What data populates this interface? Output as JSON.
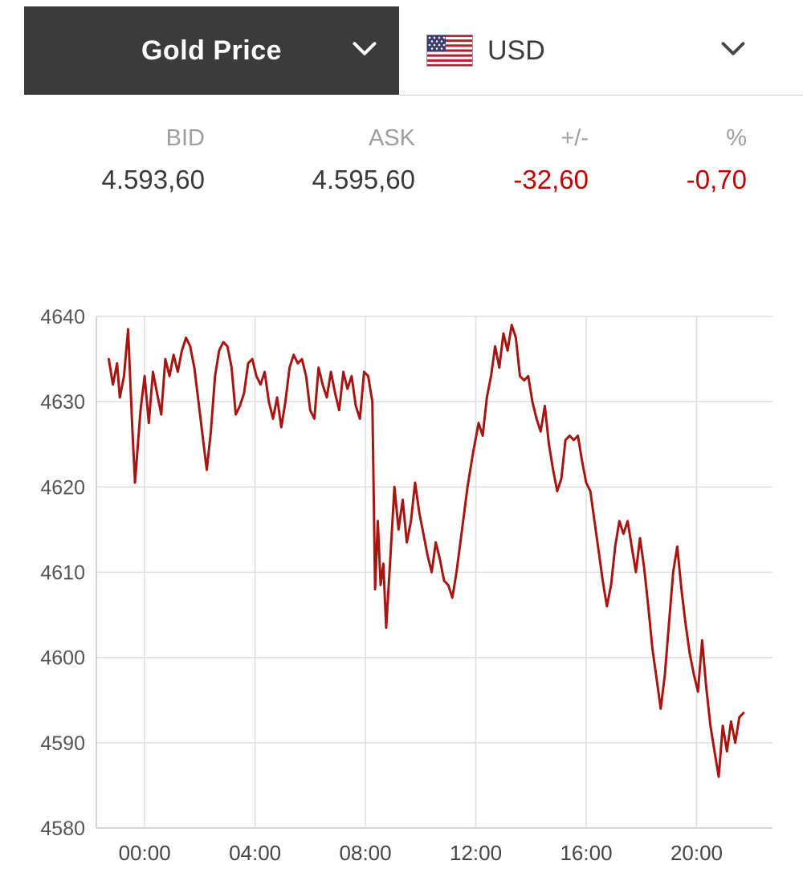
{
  "header": {
    "title": "Gold Price",
    "currency": "USD"
  },
  "quote": {
    "columns": [
      "BID",
      "ASK",
      "+/-",
      "%"
    ],
    "bid": "4.593,60",
    "ask": "4.595,60",
    "change": "-32,60",
    "change_pct": "-0,70"
  },
  "colors": {
    "negative": "#c00000",
    "line": "#aa1410",
    "grid": "#dedede",
    "axis": "#c7c7c7",
    "ytick_text": "#555555",
    "xtick_text": "#444444",
    "header_bg": "#3b3b3b"
  },
  "chart_data": {
    "type": "line",
    "title": "",
    "xlabel": "",
    "ylabel": "",
    "xlim": [
      -1.75,
      22.75
    ],
    "ylim": [
      4580,
      4640
    ],
    "yticks": [
      4580,
      4590,
      4600,
      4610,
      4620,
      4630,
      4640
    ],
    "xticks": [
      {
        "value": 0,
        "label": "00:00"
      },
      {
        "value": 4,
        "label": "04:00"
      },
      {
        "value": 8,
        "label": "08:00"
      },
      {
        "value": 12,
        "label": "12:00"
      },
      {
        "value": 16,
        "label": "16:00"
      },
      {
        "value": 20,
        "label": "20:00"
      }
    ],
    "grid": true,
    "legend": false,
    "series": [
      {
        "name": "Gold Price USD",
        "points": [
          [
            -1.3,
            4635.0
          ],
          [
            -1.15,
            4632.0
          ],
          [
            -1.0,
            4634.5
          ],
          [
            -0.9,
            4630.5
          ],
          [
            -0.75,
            4633.0
          ],
          [
            -0.6,
            4638.5
          ],
          [
            -0.45,
            4627.0
          ],
          [
            -0.35,
            4620.5
          ],
          [
            -0.15,
            4629.0
          ],
          [
            0.0,
            4633.0
          ],
          [
            0.15,
            4627.5
          ],
          [
            0.3,
            4633.5
          ],
          [
            0.45,
            4631.0
          ],
          [
            0.6,
            4628.5
          ],
          [
            0.75,
            4635.0
          ],
          [
            0.9,
            4633.0
          ],
          [
            1.05,
            4635.5
          ],
          [
            1.2,
            4633.5
          ],
          [
            1.35,
            4636.0
          ],
          [
            1.5,
            4637.5
          ],
          [
            1.65,
            4636.5
          ],
          [
            1.8,
            4634.0
          ],
          [
            1.95,
            4630.0
          ],
          [
            2.1,
            4626.0
          ],
          [
            2.25,
            4622.0
          ],
          [
            2.4,
            4626.5
          ],
          [
            2.55,
            4633.0
          ],
          [
            2.7,
            4636.0
          ],
          [
            2.85,
            4637.0
          ],
          [
            3.0,
            4636.5
          ],
          [
            3.15,
            4634.0
          ],
          [
            3.3,
            4628.5
          ],
          [
            3.45,
            4629.5
          ],
          [
            3.6,
            4631.0
          ],
          [
            3.75,
            4634.5
          ],
          [
            3.9,
            4635.0
          ],
          [
            4.05,
            4633.0
          ],
          [
            4.2,
            4632.0
          ],
          [
            4.35,
            4633.5
          ],
          [
            4.5,
            4630.0
          ],
          [
            4.65,
            4628.0
          ],
          [
            4.8,
            4630.5
          ],
          [
            4.95,
            4627.0
          ],
          [
            5.1,
            4630.0
          ],
          [
            5.25,
            4634.0
          ],
          [
            5.4,
            4635.5
          ],
          [
            5.55,
            4634.5
          ],
          [
            5.7,
            4635.0
          ],
          [
            5.85,
            4633.0
          ],
          [
            6.0,
            4629.0
          ],
          [
            6.15,
            4628.0
          ],
          [
            6.3,
            4634.0
          ],
          [
            6.45,
            4632.0
          ],
          [
            6.6,
            4630.5
          ],
          [
            6.75,
            4633.5
          ],
          [
            6.9,
            4631.0
          ],
          [
            7.05,
            4629.0
          ],
          [
            7.2,
            4633.5
          ],
          [
            7.35,
            4631.5
          ],
          [
            7.5,
            4633.0
          ],
          [
            7.65,
            4629.5
          ],
          [
            7.8,
            4628.0
          ],
          [
            7.95,
            4633.5
          ],
          [
            8.1,
            4633.0
          ],
          [
            8.25,
            4630.0
          ],
          [
            8.35,
            4608.0
          ],
          [
            8.45,
            4616.0
          ],
          [
            8.55,
            4608.5
          ],
          [
            8.65,
            4611.0
          ],
          [
            8.75,
            4603.5
          ],
          [
            8.9,
            4611.5
          ],
          [
            9.05,
            4620.0
          ],
          [
            9.2,
            4615.0
          ],
          [
            9.35,
            4618.5
          ],
          [
            9.5,
            4613.5
          ],
          [
            9.65,
            4616.0
          ],
          [
            9.8,
            4620.5
          ],
          [
            9.95,
            4617.0
          ],
          [
            10.1,
            4614.5
          ],
          [
            10.25,
            4612.0
          ],
          [
            10.4,
            4610.0
          ],
          [
            10.55,
            4613.5
          ],
          [
            10.7,
            4611.5
          ],
          [
            10.85,
            4609.0
          ],
          [
            11.0,
            4608.5
          ],
          [
            11.15,
            4607.0
          ],
          [
            11.3,
            4610.0
          ],
          [
            11.5,
            4615.0
          ],
          [
            11.7,
            4620.0
          ],
          [
            11.9,
            4624.0
          ],
          [
            12.1,
            4627.5
          ],
          [
            12.25,
            4626.0
          ],
          [
            12.4,
            4630.5
          ],
          [
            12.55,
            4633.0
          ],
          [
            12.7,
            4636.5
          ],
          [
            12.85,
            4634.0
          ],
          [
            13.0,
            4638.0
          ],
          [
            13.15,
            4636.0
          ],
          [
            13.3,
            4639.0
          ],
          [
            13.45,
            4637.5
          ],
          [
            13.6,
            4633.0
          ],
          [
            13.75,
            4632.5
          ],
          [
            13.9,
            4633.0
          ],
          [
            14.05,
            4630.0
          ],
          [
            14.2,
            4628.0
          ],
          [
            14.35,
            4626.5
          ],
          [
            14.5,
            4629.5
          ],
          [
            14.65,
            4625.0
          ],
          [
            14.8,
            4622.0
          ],
          [
            14.95,
            4619.5
          ],
          [
            15.1,
            4621.0
          ],
          [
            15.25,
            4625.5
          ],
          [
            15.4,
            4626.0
          ],
          [
            15.55,
            4625.5
          ],
          [
            15.7,
            4626.0
          ],
          [
            15.85,
            4623.0
          ],
          [
            16.0,
            4620.5
          ],
          [
            16.15,
            4619.5
          ],
          [
            16.3,
            4616.0
          ],
          [
            16.45,
            4612.5
          ],
          [
            16.6,
            4609.0
          ],
          [
            16.75,
            4606.0
          ],
          [
            16.9,
            4608.5
          ],
          [
            17.05,
            4613.0
          ],
          [
            17.2,
            4616.0
          ],
          [
            17.35,
            4614.5
          ],
          [
            17.5,
            4616.0
          ],
          [
            17.65,
            4613.0
          ],
          [
            17.8,
            4610.0
          ],
          [
            17.95,
            4614.0
          ],
          [
            18.1,
            4610.5
          ],
          [
            18.25,
            4606.0
          ],
          [
            18.4,
            4601.0
          ],
          [
            18.55,
            4597.5
          ],
          [
            18.7,
            4594.0
          ],
          [
            18.85,
            4598.0
          ],
          [
            19.0,
            4604.0
          ],
          [
            19.15,
            4610.0
          ],
          [
            19.3,
            4613.0
          ],
          [
            19.45,
            4608.0
          ],
          [
            19.6,
            4604.0
          ],
          [
            19.75,
            4600.5
          ],
          [
            19.9,
            4598.0
          ],
          [
            20.05,
            4596.0
          ],
          [
            20.2,
            4602.0
          ],
          [
            20.35,
            4596.5
          ],
          [
            20.5,
            4592.0
          ],
          [
            20.65,
            4589.0
          ],
          [
            20.8,
            4586.0
          ],
          [
            20.95,
            4592.0
          ],
          [
            21.1,
            4589.0
          ],
          [
            21.25,
            4592.5
          ],
          [
            21.4,
            4590.0
          ],
          [
            21.55,
            4593.0
          ],
          [
            21.7,
            4593.5
          ]
        ]
      }
    ]
  }
}
